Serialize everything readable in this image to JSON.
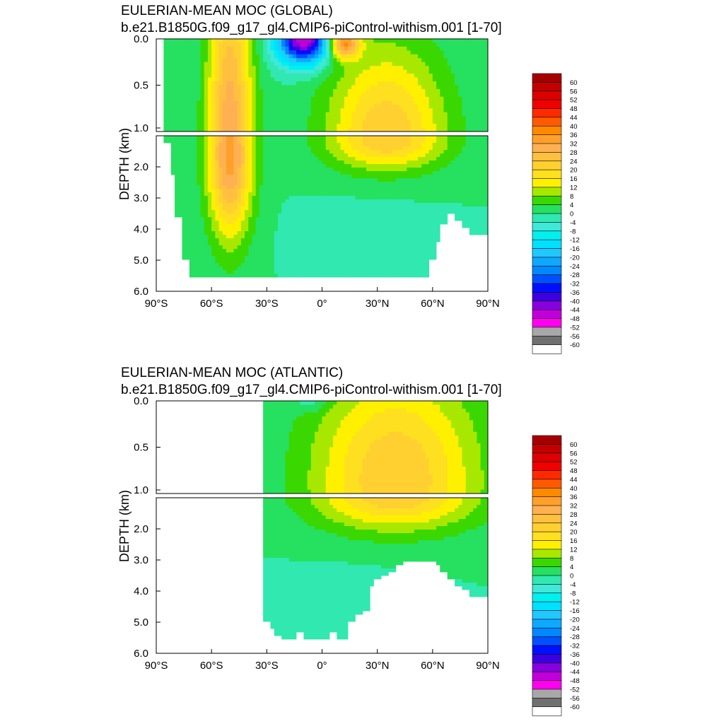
{
  "chart_data": [
    {
      "type": "heatmap",
      "title": "EULERIAN-MEAN MOC (GLOBAL)",
      "subtitle": "b.e21.B1850G.f09_g17_gl4.CMIP6-piControl-withism.001 [1-70]",
      "ylabel": "DEPTH (km)",
      "xlim": [
        -90,
        90
      ],
      "ylim_upper_km": [
        0,
        1
      ],
      "ylim_lower_km": [
        1,
        6
      ],
      "x_ticks": [
        -90,
        -60,
        -30,
        0,
        30,
        60,
        90
      ],
      "x_tick_labels": [
        "90°S",
        "60°S",
        "30°S",
        "0°",
        "30°N",
        "60°N",
        "90°N"
      ],
      "y_ticks_upper": [
        0.0,
        0.5,
        1.0
      ],
      "y_tick_labels_upper": [
        "0.0",
        "0.5",
        "1.0"
      ],
      "y_ticks_lower": [
        2.0,
        3.0,
        4.0,
        5.0,
        6.0
      ],
      "y_tick_labels_lower": [
        "2.0",
        "3.0",
        "4.0",
        "5.0",
        "6.0"
      ],
      "land_mask": [
        [
          -90,
          -78
        ],
        [
          -78,
          -76
        ],
        [
          -76,
          -73
        ],
        [
          -73,
          -70
        ],
        [
          -70,
          -67
        ],
        [
          -67,
          -64
        ],
        [
          -64,
          -60
        ],
        [
          -60,
          -57
        ],
        [
          -57,
          -53
        ],
        [
          -53,
          -49
        ],
        [
          -49,
          -46
        ],
        [
          -46,
          -42
        ],
        [
          -42,
          -38
        ],
        [
          -38,
          -35
        ],
        [
          -35,
          -31
        ],
        [
          -31,
          -28
        ],
        [
          -28,
          -24
        ],
        [
          -24,
          -21
        ],
        [
          -21,
          -17
        ],
        [
          -17,
          -14
        ],
        [
          -14,
          -10
        ],
        [
          -10,
          -7
        ],
        [
          -7,
          -3
        ],
        [
          -3,
          0
        ],
        [
          0,
          4
        ],
        [
          4,
          7
        ],
        [
          7,
          11
        ],
        [
          11,
          14
        ],
        [
          14,
          18
        ],
        [
          18,
          21
        ],
        [
          21,
          25
        ],
        [
          25,
          28
        ],
        [
          28,
          32
        ],
        [
          32,
          35
        ],
        [
          35,
          39
        ],
        [
          39,
          42
        ],
        [
          42,
          46
        ],
        [
          46,
          49
        ],
        [
          49,
          53
        ],
        [
          53,
          56
        ],
        [
          56,
          60
        ],
        [
          60,
          63
        ],
        [
          63,
          67
        ],
        [
          67,
          70
        ],
        [
          70,
          74
        ],
        [
          74,
          77
        ],
        [
          77,
          81
        ],
        [
          81,
          84
        ],
        [
          84,
          88
        ],
        [
          88,
          90
        ]
      ],
      "bottom_depth_km": [
        0.0,
        1.2,
        2.2,
        3.6,
        5.0,
        5.5,
        5.5,
        5.5,
        5.5,
        5.5,
        5.5,
        5.5,
        5.5,
        5.5,
        5.5,
        5.5,
        5.5,
        5.5,
        5.5,
        5.5,
        5.5,
        5.5,
        5.5,
        5.5,
        5.5,
        5.5,
        5.5,
        5.5,
        5.5,
        5.5,
        5.5,
        5.5,
        5.5,
        5.5,
        5.5,
        5.5,
        5.5,
        5.5,
        5.5,
        5.5,
        5.5,
        5.0,
        4.4,
        3.8,
        3.5,
        3.7,
        4.0,
        4.2,
        4.2,
        4.2
      ],
      "features": [
        {
          "name": "southern-ocean-deacon-cell",
          "lat_center": -50,
          "depth_center_km": 1.6,
          "lat_half_width": 12,
          "depth_half_width_km": 2.6,
          "peak_sv": 34
        },
        {
          "name": "tropical-surface-negative-cell",
          "lat_center": -10,
          "depth_center_km": 0.02,
          "lat_half_width": 14,
          "depth_half_width_km": 0.25,
          "peak_sv": -48
        },
        {
          "name": "northern-subtropical-surface-cell",
          "lat_center": 12,
          "depth_center_km": 0.05,
          "lat_half_width": 8,
          "depth_half_width_km": 0.15,
          "peak_sv": 36
        },
        {
          "name": "upper-overturning-cell",
          "lat_center": 35,
          "depth_center_km": 1.1,
          "lat_half_width": 32,
          "depth_half_width_km": 1.0,
          "peak_sv": 24
        },
        {
          "name": "abyssal-cell",
          "lat_center": 25,
          "depth_center_km": 4.3,
          "lat_half_width": 30,
          "depth_half_width_km": 1.0,
          "peak_sv": -3
        }
      ]
    },
    {
      "type": "heatmap",
      "title": "EULERIAN-MEAN MOC (ATLANTIC)",
      "subtitle": "b.e21.B1850G.f09_g17_gl4.CMIP6-piControl-withism.001 [1-70]",
      "ylabel": "DEPTH (km)",
      "xlim": [
        -90,
        90
      ],
      "ylim_upper_km": [
        0,
        1
      ],
      "ylim_lower_km": [
        1,
        6
      ],
      "x_ticks": [
        -90,
        -60,
        -30,
        0,
        30,
        60,
        90
      ],
      "x_tick_labels": [
        "90°S",
        "60°S",
        "30°S",
        "0°",
        "30°N",
        "60°N",
        "90°N"
      ],
      "y_ticks_upper": [
        0.0,
        0.5,
        1.0
      ],
      "y_tick_labels_upper": [
        "0.0",
        "0.5",
        "1.0"
      ],
      "y_ticks_lower": [
        2.0,
        3.0,
        4.0,
        5.0,
        6.0
      ],
      "y_tick_labels_lower": [
        "2.0",
        "3.0",
        "4.0",
        "5.0",
        "6.0"
      ],
      "basin_south_limit": -33,
      "bottom_depth_km": [
        0.0,
        0.0,
        0.0,
        0.0,
        0.0,
        0.0,
        0.0,
        0.0,
        0.0,
        0.0,
        0.0,
        0.0,
        0.0,
        0.0,
        0.0,
        0.0,
        5.0,
        5.2,
        5.4,
        5.5,
        5.5,
        5.3,
        5.5,
        5.5,
        5.5,
        5.5,
        5.3,
        5.5,
        5.5,
        5.0,
        4.8,
        4.6,
        3.8,
        3.6,
        3.5,
        3.4,
        3.2,
        3.0,
        3.0,
        3.0,
        3.0,
        3.0,
        3.2,
        3.4,
        3.6,
        3.8,
        4.0,
        4.2,
        4.2,
        4.2
      ],
      "features": [
        {
          "name": "upper-overturning-cell",
          "lat_center": 40,
          "depth_center_km": 0.85,
          "lat_half_width": 45,
          "depth_half_width_km": 1.2,
          "peak_sv": 24
        },
        {
          "name": "tropical-surface-negative-cell",
          "lat_center": -6,
          "depth_center_km": 0.02,
          "lat_half_width": 10,
          "depth_half_width_km": 0.1,
          "peak_sv": -6
        },
        {
          "name": "abyssal-cell",
          "lat_center": 10,
          "depth_center_km": 4.3,
          "lat_half_width": 35,
          "depth_half_width_km": 0.9,
          "peak_sv": -3
        }
      ]
    }
  ],
  "colorbar": {
    "labels": [
      "60",
      "56",
      "52",
      "48",
      "44",
      "40",
      "36",
      "32",
      "28",
      "24",
      "20",
      "16",
      "12",
      "8",
      "4",
      "0",
      "-4",
      "-8",
      "-12",
      "-16",
      "-20",
      "-24",
      "-28",
      "-32",
      "-36",
      "-40",
      "-44",
      "-48",
      "-52",
      "-56",
      "-60"
    ],
    "colors": [
      "#a50000",
      "#c30000",
      "#dc0000",
      "#f00000",
      "#ff2a00",
      "#ff5a00",
      "#ff8a00",
      "#ffa02a",
      "#ffb050",
      "#ffc040",
      "#ffd030",
      "#ffe020",
      "#fff000",
      "#a8e800",
      "#3ad800",
      "#26e060",
      "#30e8b0",
      "#40e8d8",
      "#00f0f0",
      "#00e0ff",
      "#20c8ff",
      "#10a8ff",
      "#0088ff",
      "#0050ff",
      "#0010ff",
      "#3a00e0",
      "#8800e0",
      "#c000d8",
      "#ff00f0",
      "#a8a8a8",
      "#707070",
      "#ffffff"
    ]
  }
}
